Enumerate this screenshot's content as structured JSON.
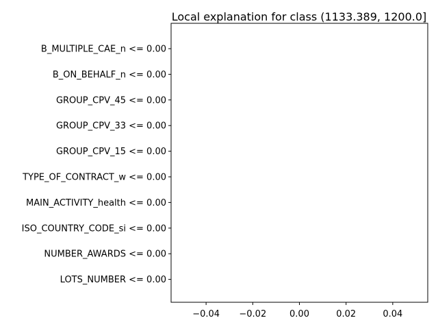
{
  "chart_data": {
    "type": "bar",
    "orientation": "horizontal",
    "title": "Local explanation for class (1133.389, 1200.0]",
    "xlabel": "",
    "ylabel": "",
    "categories": [
      "B_MULTIPLE_CAE_n <= 0.00",
      "B_ON_BEHALF_n <= 0.00",
      "GROUP_CPV_45 <= 0.00",
      "GROUP_CPV_33 <= 0.00",
      "GROUP_CPV_15 <= 0.00",
      "TYPE_OF_CONTRACT_w <= 0.00",
      "MAIN_ACTIVITY_health <= 0.00",
      "ISO_COUNTRY_CODE_si <= 0.00",
      "NUMBER_AWARDS <= 0.00",
      "LOTS_NUMBER <= 0.00"
    ],
    "values": [
      0,
      0,
      0,
      0,
      0,
      0,
      0,
      0,
      0,
      0
    ],
    "xlim": [
      -0.055,
      0.055
    ],
    "xticks": [
      -0.04,
      -0.02,
      0.0,
      0.02,
      0.04
    ],
    "xtick_labels": [
      "−0.04",
      "−0.02",
      "0.00",
      "0.02",
      "0.04"
    ],
    "grid": false,
    "bar_color": "#1f77b4"
  }
}
